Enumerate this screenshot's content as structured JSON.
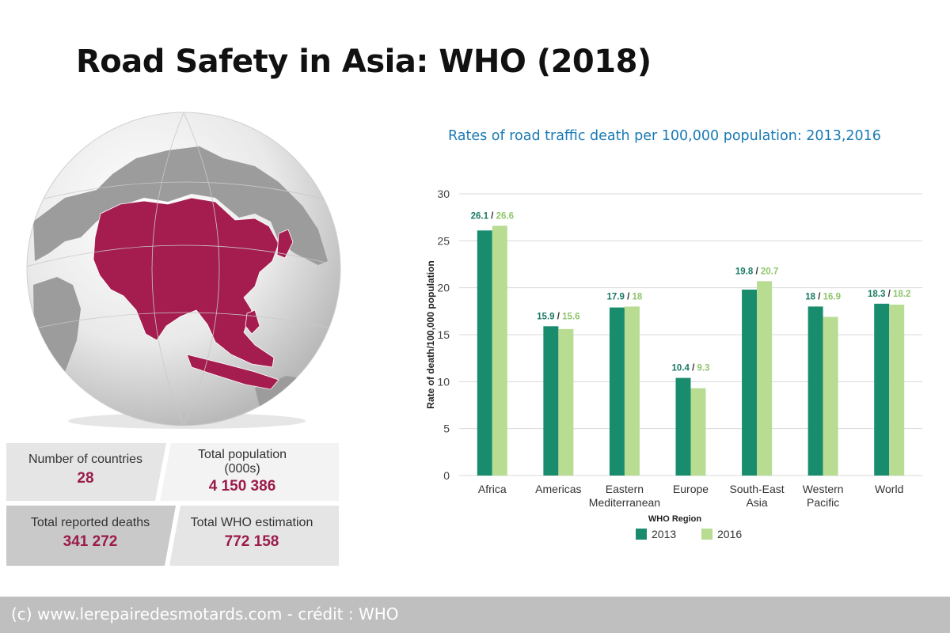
{
  "title": "Road Safety in Asia: WHO (2018)",
  "chart_title": "Rates of road traffic death per 100,000 population: 2013,2016",
  "stats": {
    "countries": {
      "label": "Number of countries",
      "value": "28"
    },
    "population": {
      "label_line1": "Total population",
      "label_line2": "(000s)",
      "value": "4 150 386"
    },
    "deaths": {
      "label": "Total reported deaths",
      "value": "341 272"
    },
    "estimation": {
      "label": "Total WHO estimation",
      "value": "772 158"
    }
  },
  "colors": {
    "dark_green": "#1a8c6e",
    "light_green": "#b7dc92",
    "asia_highlight": "#a51d4f",
    "stat_value": "#9b1b4b"
  },
  "footer": "(c) www.lerepairedesmotards.com - crédit : WHO",
  "chart_data": {
    "type": "bar",
    "categories": [
      [
        "Africa"
      ],
      [
        "Americas"
      ],
      [
        "Eastern",
        "Mediterranean"
      ],
      [
        "Europe"
      ],
      [
        "South-East",
        "Asia"
      ],
      [
        "Western",
        "Pacific"
      ],
      [
        "World"
      ]
    ],
    "series": [
      {
        "name": "2013",
        "values": [
          26.1,
          15.9,
          17.9,
          10.4,
          19.8,
          18,
          18.3
        ]
      },
      {
        "name": "2016",
        "values": [
          26.6,
          15.6,
          18,
          9.3,
          20.7,
          16.9,
          18.2
        ]
      }
    ],
    "data_labels_2013": [
      "26.1",
      "15.9",
      "17.9",
      "10.4",
      "19.8",
      "18",
      "18.3"
    ],
    "data_labels_2016": [
      "26.6",
      "15.6",
      "18",
      "9.3",
      "20.7",
      "16.9",
      "18.2"
    ],
    "xlabel": "WHO Region",
    "ylabel": "Rate of death/100,000 population",
    "ylim": [
      0,
      30
    ],
    "yticks": [
      0,
      5,
      10,
      15,
      20,
      25,
      30
    ],
    "grid": true,
    "legend": "bottom"
  }
}
